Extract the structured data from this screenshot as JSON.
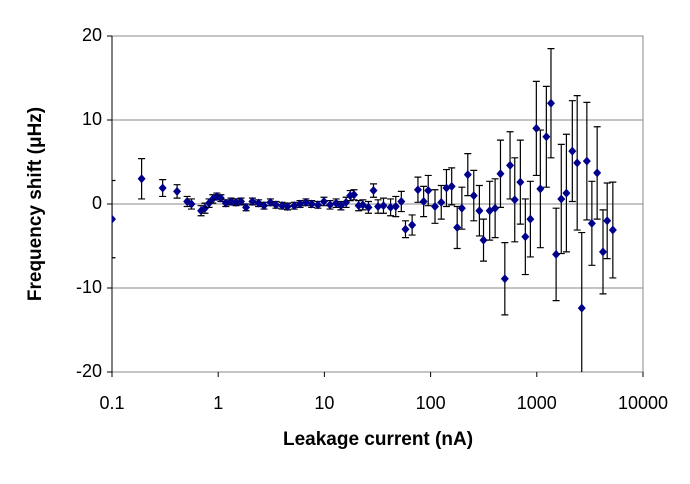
{
  "chart_data": {
    "type": "scatter",
    "x_label": "Leakage current (nA)",
    "y_label": "Frequency shift (μHz)",
    "xlog": true,
    "xlim": [
      0.1,
      10000
    ],
    "xticks": [
      0.1,
      1,
      10,
      100,
      1000,
      10000
    ],
    "ylim": [
      -20,
      20
    ],
    "yticks": [
      -20,
      -10,
      0,
      10,
      20
    ],
    "grid": true,
    "color": "#00008b",
    "error_color": "#000000",
    "x": [
      0.1,
      0.19,
      0.3,
      0.41,
      0.51,
      0.56,
      0.69,
      0.75,
      0.82,
      0.89,
      0.97,
      1.06,
      1.18,
      1.32,
      1.47,
      1.64,
      1.83,
      2.1,
      2.4,
      2.7,
      3.1,
      3.5,
      4.0,
      4.5,
      5.2,
      5.9,
      6.7,
      7.6,
      8.7,
      9.9,
      11.3,
      12.9,
      14.3,
      16,
      17.5,
      19,
      21,
      23,
      26,
      29,
      32,
      36,
      42,
      47,
      53,
      58,
      67,
      76,
      86,
      95,
      110,
      126,
      141,
      158,
      178,
      197,
      224,
      255,
      288,
      315,
      360,
      405,
      455,
      500,
      560,
      620,
      700,
      780,
      870,
      990,
      1080,
      1230,
      1360,
      1520,
      1700,
      1900,
      2160,
      2400,
      2650,
      2960,
      3300,
      3700,
      4200,
      4600,
      5200
    ],
    "values": [
      -1.8,
      3.0,
      1.9,
      1.5,
      0.3,
      0.0,
      -0.8,
      -0.5,
      0.1,
      0.6,
      0.9,
      0.7,
      0.1,
      0.3,
      0.2,
      0.3,
      -0.4,
      0.3,
      0.1,
      -0.2,
      0.2,
      -0.1,
      -0.2,
      -0.3,
      -0.2,
      0.0,
      0.2,
      0.0,
      -0.1,
      0.3,
      -0.1,
      0.1,
      -0.2,
      0.2,
      1.0,
      1.1,
      -0.2,
      -0.1,
      -0.4,
      1.6,
      -0.3,
      -0.2,
      -0.4,
      -0.3,
      0.3,
      -3.0,
      -2.5,
      1.7,
      0.3,
      1.6,
      -0.3,
      0.2,
      1.9,
      2.1,
      -2.8,
      -0.5,
      3.5,
      1.0,
      -0.8,
      -4.3,
      -0.8,
      -0.5,
      3.6,
      -8.9,
      4.6,
      0.5,
      2.6,
      -3.9,
      -1.8,
      9.0,
      1.8,
      8.0,
      12.0,
      -6.0,
      0.6,
      1.3,
      6.3,
      4.9,
      -12.4,
      5.1,
      -2.3,
      3.7,
      -5.7,
      -2.0,
      -3.1
    ],
    "errors": [
      4.6,
      2.4,
      1.0,
      0.8,
      0.6,
      0.6,
      0.6,
      0.6,
      0.5,
      0.5,
      0.4,
      0.4,
      0.4,
      0.4,
      0.4,
      0.4,
      0.4,
      0.4,
      0.4,
      0.4,
      0.4,
      0.4,
      0.4,
      0.4,
      0.4,
      0.4,
      0.4,
      0.4,
      0.4,
      0.5,
      0.5,
      0.5,
      0.5,
      0.6,
      0.6,
      0.6,
      0.6,
      0.6,
      0.7,
      0.8,
      0.8,
      0.9,
      1.0,
      1.2,
      1.2,
      1.0,
      1.2,
      1.5,
      1.8,
      1.8,
      2.0,
      2.0,
      2.2,
      2.2,
      2.5,
      2.5,
      2.5,
      3.0,
      3.0,
      2.5,
      3.5,
      3.5,
      4.0,
      4.3,
      4.0,
      5.0,
      5.0,
      4.5,
      4.5,
      5.6,
      7.0,
      6.0,
      6.5,
      5.5,
      6.5,
      7.0,
      6.0,
      8.0,
      9.0,
      7.0,
      5.0,
      5.5,
      5.0,
      4.5,
      5.7
    ]
  }
}
